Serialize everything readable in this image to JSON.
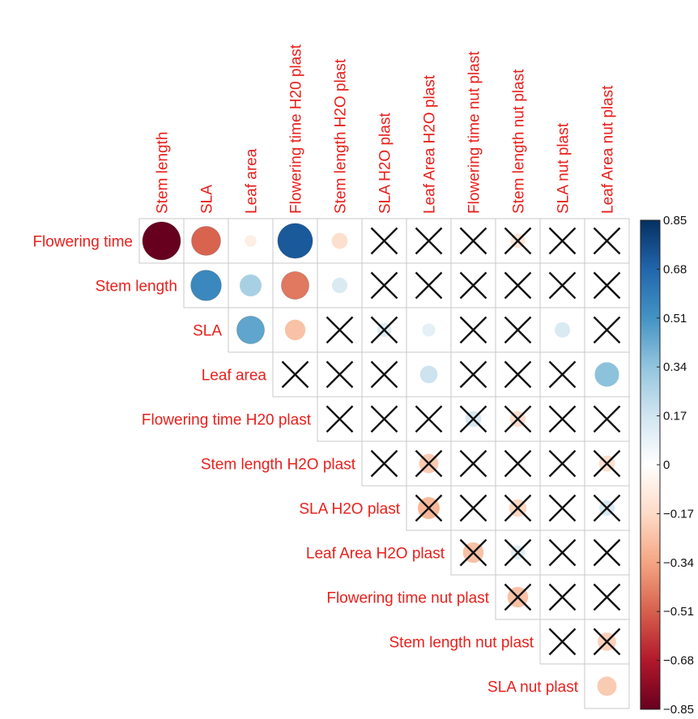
{
  "chart_data": {
    "type": "heatmap",
    "subtype": "correlation-matrix-upper-triangle",
    "variables": [
      "Flowering time",
      "Stem length",
      "SLA",
      "Leaf area",
      "Flowering time H20 plast",
      "Stem length H2O plast",
      "SLA H2O plast",
      "Leaf Area H2O plast",
      "Flowering time nut plast",
      "Stem length nut plast",
      "SLA nut plast",
      "Leaf Area nut plast"
    ],
    "row_labels": [
      "Flowering time",
      "Stem length",
      "SLA",
      "Leaf area",
      "Flowering time H20 plast",
      "Stem length H2O plast",
      "SLA H2O plast",
      "Leaf Area H2O plast",
      "Flowering time nut plast",
      "Stem length nut plast",
      "SLA nut plast"
    ],
    "column_labels": [
      "Stem length",
      "SLA",
      "Leaf area",
      "Flowering time H20 plast",
      "Stem length H2O plast",
      "SLA H2O plast",
      "Leaf Area H2O plast",
      "Flowering time nut plast",
      "Stem length nut plast",
      "SLA nut plast",
      "Leaf Area nut plast"
    ],
    "cells": [
      {
        "row": "Flowering time",
        "col": "Stem length",
        "r": -0.85,
        "crossed": false
      },
      {
        "row": "Flowering time",
        "col": "SLA",
        "r": -0.5,
        "crossed": false
      },
      {
        "row": "Flowering time",
        "col": "Leaf area",
        "r": -0.08,
        "crossed": false
      },
      {
        "row": "Flowering time",
        "col": "Flowering time H20 plast",
        "r": 0.72,
        "crossed": false
      },
      {
        "row": "Flowering time",
        "col": "Stem length H2O plast",
        "r": -0.15,
        "crossed": false
      },
      {
        "row": "Flowering time",
        "col": "SLA H2O plast",
        "r": 0.02,
        "crossed": true
      },
      {
        "row": "Flowering time",
        "col": "Leaf Area H2O plast",
        "r": 0.02,
        "crossed": true
      },
      {
        "row": "Flowering time",
        "col": "Flowering time nut plast",
        "r": 0.02,
        "crossed": true
      },
      {
        "row": "Flowering time",
        "col": "Stem length nut plast",
        "r": -0.12,
        "crossed": true
      },
      {
        "row": "Flowering time",
        "col": "SLA nut plast",
        "r": 0.02,
        "crossed": true
      },
      {
        "row": "Flowering time",
        "col": "Leaf Area nut plast",
        "r": 0.02,
        "crossed": true
      },
      {
        "row": "Stem length",
        "col": "SLA",
        "r": 0.55,
        "crossed": false
      },
      {
        "row": "Stem length",
        "col": "Leaf area",
        "r": 0.28,
        "crossed": false
      },
      {
        "row": "Stem length",
        "col": "Flowering time H20 plast",
        "r": -0.45,
        "crossed": false
      },
      {
        "row": "Stem length",
        "col": "Stem length H2O plast",
        "r": 0.14,
        "crossed": false
      },
      {
        "row": "Stem length",
        "col": "SLA H2O plast",
        "r": 0.02,
        "crossed": true
      },
      {
        "row": "Stem length",
        "col": "Leaf Area H2O plast",
        "r": 0.02,
        "crossed": true
      },
      {
        "row": "Stem length",
        "col": "Flowering time nut plast",
        "r": 0.02,
        "crossed": true
      },
      {
        "row": "Stem length",
        "col": "Stem length nut plast",
        "r": 0.02,
        "crossed": true
      },
      {
        "row": "Stem length",
        "col": "SLA nut plast",
        "r": 0.02,
        "crossed": true
      },
      {
        "row": "Stem length",
        "col": "Leaf Area nut plast",
        "r": 0.02,
        "crossed": true
      },
      {
        "row": "SLA",
        "col": "Leaf area",
        "r": 0.45,
        "crossed": false
      },
      {
        "row": "SLA",
        "col": "Flowering time H20 plast",
        "r": -0.25,
        "crossed": false
      },
      {
        "row": "SLA",
        "col": "Stem length H2O plast",
        "r": 0.02,
        "crossed": true
      },
      {
        "row": "SLA",
        "col": "SLA H2O plast",
        "r": 0.12,
        "crossed": true
      },
      {
        "row": "SLA",
        "col": "Leaf Area H2O plast",
        "r": 0.1,
        "crossed": false
      },
      {
        "row": "SLA",
        "col": "Flowering time nut plast",
        "r": 0.02,
        "crossed": true
      },
      {
        "row": "SLA",
        "col": "Stem length nut plast",
        "r": 0.02,
        "crossed": true
      },
      {
        "row": "SLA",
        "col": "SLA nut plast",
        "r": 0.14,
        "crossed": false
      },
      {
        "row": "SLA",
        "col": "Leaf Area nut plast",
        "r": 0.02,
        "crossed": true
      },
      {
        "row": "Leaf area",
        "col": "Flowering time H20 plast",
        "r": 0.02,
        "crossed": true
      },
      {
        "row": "Leaf area",
        "col": "Stem length H2O plast",
        "r": 0.02,
        "crossed": true
      },
      {
        "row": "Leaf area",
        "col": "SLA H2O plast",
        "r": 0.02,
        "crossed": true
      },
      {
        "row": "Leaf area",
        "col": "Leaf Area H2O plast",
        "r": 0.18,
        "crossed": false
      },
      {
        "row": "Leaf area",
        "col": "Flowering time nut plast",
        "r": 0.02,
        "crossed": true
      },
      {
        "row": "Leaf area",
        "col": "Stem length nut plast",
        "r": 0.02,
        "crossed": true
      },
      {
        "row": "Leaf area",
        "col": "SLA nut plast",
        "r": 0.02,
        "crossed": true
      },
      {
        "row": "Leaf area",
        "col": "Leaf Area nut plast",
        "r": 0.35,
        "crossed": false
      },
      {
        "row": "Flowering time H20 plast",
        "col": "Stem length H2O plast",
        "r": 0.02,
        "crossed": true
      },
      {
        "row": "Flowering time H20 plast",
        "col": "SLA H2O plast",
        "r": 0.02,
        "crossed": true
      },
      {
        "row": "Flowering time H20 plast",
        "col": "Leaf Area H2O plast",
        "r": 0.02,
        "crossed": true
      },
      {
        "row": "Flowering time H20 plast",
        "col": "Flowering time nut plast",
        "r": 0.15,
        "crossed": true
      },
      {
        "row": "Flowering time H20 plast",
        "col": "Stem length nut plast",
        "r": -0.15,
        "crossed": true
      },
      {
        "row": "Flowering time H20 plast",
        "col": "SLA nut plast",
        "r": 0.02,
        "crossed": true
      },
      {
        "row": "Flowering time H20 plast",
        "col": "Leaf Area nut plast",
        "r": 0.02,
        "crossed": true
      },
      {
        "row": "Stem length H2O plast",
        "col": "SLA H2O plast",
        "r": 0.02,
        "crossed": true
      },
      {
        "row": "Stem length H2O plast",
        "col": "Leaf Area H2O plast",
        "r": -0.22,
        "crossed": true
      },
      {
        "row": "Stem length H2O plast",
        "col": "Flowering time nut plast",
        "r": 0.02,
        "crossed": true
      },
      {
        "row": "Stem length H2O plast",
        "col": "Stem length nut plast",
        "r": 0.02,
        "crossed": true
      },
      {
        "row": "Stem length H2O plast",
        "col": "SLA nut plast",
        "r": 0.02,
        "crossed": true
      },
      {
        "row": "Stem length H2O plast",
        "col": "Leaf Area nut plast",
        "r": -0.15,
        "crossed": true
      },
      {
        "row": "SLA H2O plast",
        "col": "Leaf Area H2O plast",
        "r": -0.28,
        "crossed": true
      },
      {
        "row": "SLA H2O plast",
        "col": "Flowering time nut plast",
        "r": 0.02,
        "crossed": true
      },
      {
        "row": "SLA H2O plast",
        "col": "Stem length nut plast",
        "r": -0.18,
        "crossed": true
      },
      {
        "row": "SLA H2O plast",
        "col": "SLA nut plast",
        "r": 0.02,
        "crossed": true
      },
      {
        "row": "SLA H2O plast",
        "col": "Leaf Area nut plast",
        "r": 0.14,
        "crossed": true
      },
      {
        "row": "Leaf Area H2O plast",
        "col": "Flowering time nut plast",
        "r": -0.25,
        "crossed": true
      },
      {
        "row": "Leaf Area H2O plast",
        "col": "Stem length nut plast",
        "r": 0.12,
        "crossed": true
      },
      {
        "row": "Leaf Area H2O plast",
        "col": "SLA nut plast",
        "r": 0.02,
        "crossed": true
      },
      {
        "row": "Leaf Area H2O plast",
        "col": "Leaf Area nut plast",
        "r": 0.02,
        "crossed": true
      },
      {
        "row": "Flowering time nut plast",
        "col": "Stem length nut plast",
        "r": -0.25,
        "crossed": true
      },
      {
        "row": "Flowering time nut plast",
        "col": "SLA nut plast",
        "r": 0.02,
        "crossed": true
      },
      {
        "row": "Flowering time nut plast",
        "col": "Leaf Area nut plast",
        "r": 0.02,
        "crossed": true
      },
      {
        "row": "Stem length nut plast",
        "col": "SLA nut plast",
        "r": 0.02,
        "crossed": true
      },
      {
        "row": "Stem length nut plast",
        "col": "Leaf Area nut plast",
        "r": -0.2,
        "crossed": true
      },
      {
        "row": "SLA nut plast",
        "col": "Leaf Area nut plast",
        "r": -0.22,
        "crossed": false
      }
    ],
    "colorbar": {
      "ticks": [
        "0.85",
        "0.68",
        "0.51",
        "0.34",
        "0.17",
        "0",
        "−0.17",
        "−0.34",
        "−0.51",
        "−0.68",
        "−0.85"
      ],
      "range": [
        -0.85,
        0.85
      ]
    },
    "colors": {
      "label": "#e8201c",
      "strong_positive": "#1f5fa8",
      "strong_negative": "#7a0b20",
      "grid": "#c8c8c8",
      "cross": "#111111"
    }
  }
}
